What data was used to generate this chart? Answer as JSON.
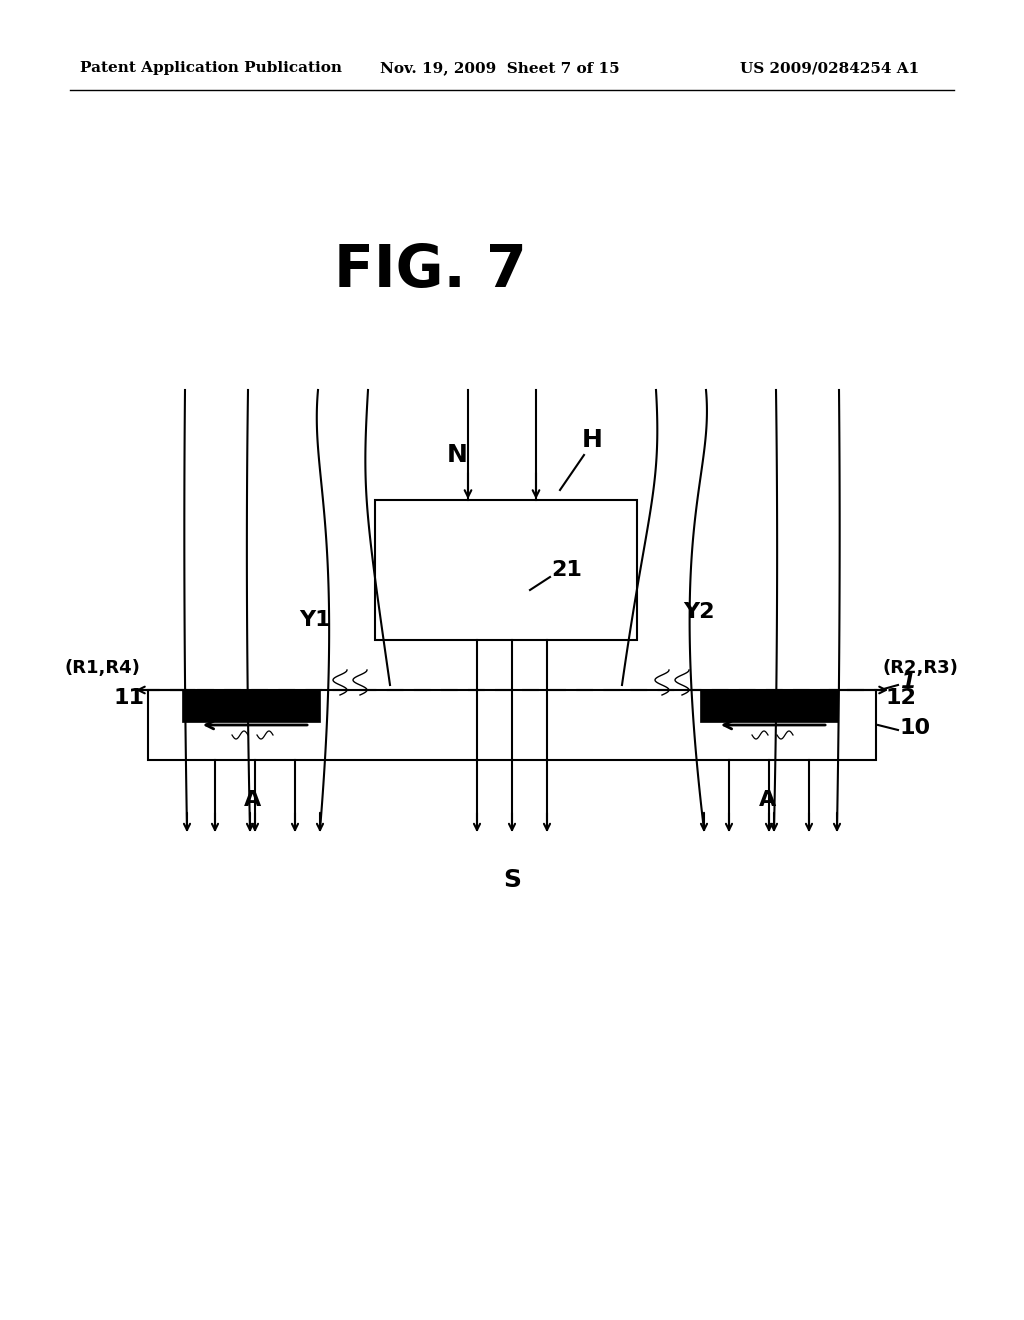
{
  "bg_color": "#ffffff",
  "fig_title": "FIG. 7",
  "header_left": "Patent Application Publication",
  "header_mid": "Nov. 19, 2009  Sheet 7 of 15",
  "header_right": "US 2009/0284254 A1",
  "line_color": "#000000",
  "lw": 1.5
}
